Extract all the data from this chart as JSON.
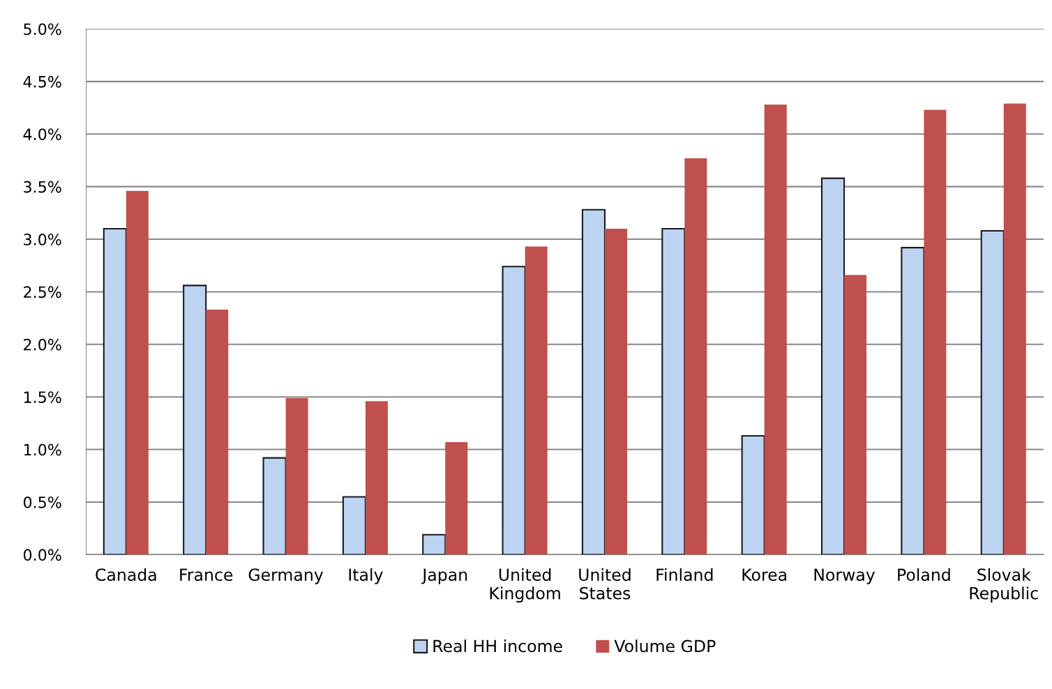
{
  "chart_data": {
    "type": "bar",
    "categories": [
      "Canada",
      "France",
      "Germany",
      "Italy",
      "Japan",
      "United\nKingdom",
      "United\nStates",
      "Finland",
      "Korea",
      "Norway",
      "Poland",
      "Slovak\nRepublic"
    ],
    "series": [
      {
        "name": "Real HH income",
        "color": "#bcd3f2",
        "values": [
          3.1,
          2.56,
          0.92,
          0.55,
          0.19,
          2.74,
          3.28,
          3.1,
          1.13,
          3.58,
          2.92,
          3.08
        ]
      },
      {
        "name": "Volume GDP",
        "color": "#c0504d",
        "values": [
          3.46,
          2.33,
          1.49,
          1.46,
          1.07,
          2.93,
          3.1,
          3.77,
          4.28,
          2.66,
          4.23,
          4.29
        ]
      }
    ],
    "ylim": [
      0,
      5
    ],
    "yticks": [
      {
        "value": 0,
        "label": "0.0%"
      },
      {
        "value": 0.5,
        "label": "0.5%"
      },
      {
        "value": 1,
        "label": "1.0%"
      },
      {
        "value": 1.5,
        "label": "1.5%"
      },
      {
        "value": 2,
        "label": "2.0%"
      },
      {
        "value": 2.5,
        "label": "2.5%"
      },
      {
        "value": 3,
        "label": "3.0%"
      },
      {
        "value": 3.5,
        "label": "3.5%"
      },
      {
        "value": 4,
        "label": "4.0%"
      },
      {
        "value": 4.5,
        "label": "4.5%"
      },
      {
        "value": 5,
        "label": "5.0%"
      }
    ],
    "grid": "y",
    "legend": "bottom"
  }
}
